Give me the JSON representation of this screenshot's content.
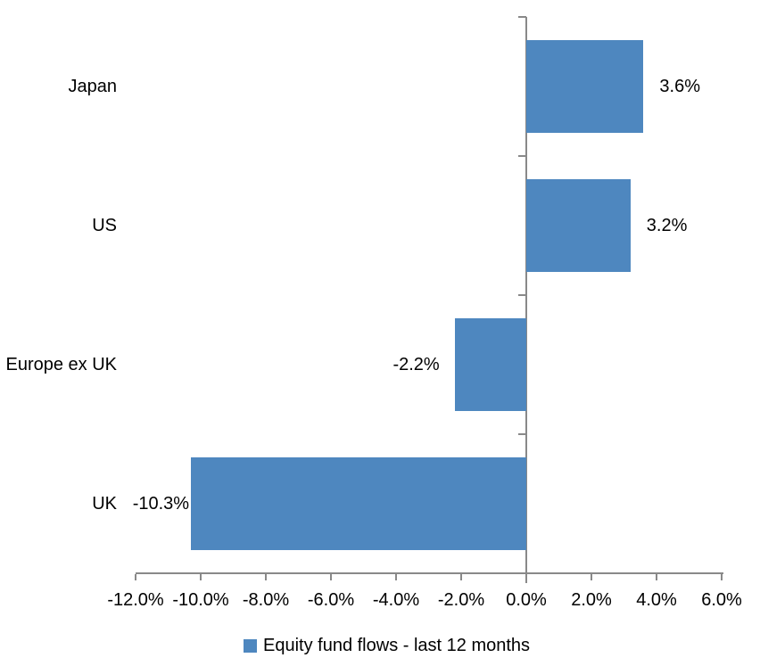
{
  "chart_data": {
    "type": "bar",
    "orientation": "horizontal",
    "title": "",
    "xlabel": "",
    "ylabel": "",
    "categories": [
      "Japan",
      "US",
      "Europe ex UK",
      "UK"
    ],
    "series": [
      {
        "name": "Equity fund flows - last 12 months",
        "values": [
          3.6,
          3.2,
          -2.2,
          -10.3
        ],
        "labels": [
          "3.6%",
          "3.2%",
          "-2.2%",
          "-10.3%"
        ],
        "color": "#4E87BF"
      }
    ],
    "xlim": [
      -12,
      6
    ],
    "x_tick_step": 2,
    "x_tick_labels": [
      "-12.0%",
      "-10.0%",
      "-8.0%",
      "-6.0%",
      "-4.0%",
      "-2.0%",
      "0.0%",
      "2.0%",
      "4.0%",
      "6.0%"
    ],
    "grid": false,
    "legend_position": "bottom",
    "axis_color": "#898989",
    "text_color": "#000000",
    "background_color": "#FFFFFF"
  },
  "legend": {
    "label": "Equity fund flows - last 12 months",
    "swatch_color": "#4E87BF"
  }
}
